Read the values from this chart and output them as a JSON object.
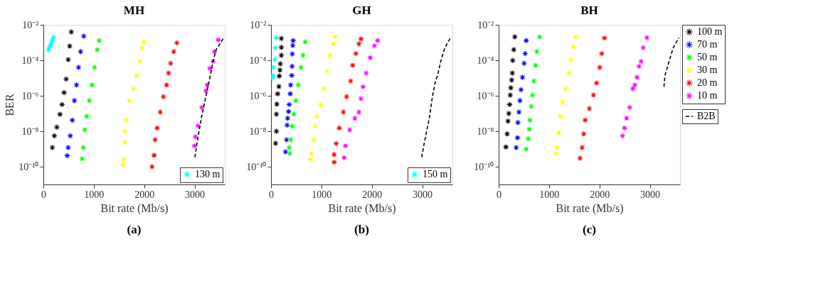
{
  "chart_data": [
    {
      "type": "scatter",
      "title": "MH",
      "xlabel": "Bit rate (Mb/s)",
      "ylabel": "BER",
      "xlim": [
        0,
        3600
      ],
      "ylim": [
        1e-11,
        0.01
      ],
      "xticks": [
        0,
        1000,
        2000,
        3000
      ],
      "yticks": [
        {
          "value": 0.01,
          "label": "10⁻²"
        },
        {
          "value": 0.0001,
          "label": "10⁻⁴"
        },
        {
          "value": 1e-06,
          "label": "10⁻⁶"
        },
        {
          "value": 1e-08,
          "label": "10⁻⁸"
        },
        {
          "value": 1e-10,
          "label": "10⁻¹⁰"
        }
      ],
      "log": "y",
      "grid": false,
      "legend": "bottom right",
      "marker": "cross",
      "annotations": [
        "(a)"
      ],
      "series": [
        {
          "name": "130 m",
          "color": "#00ffff",
          "x": [
            100,
            120,
            140,
            160,
            180,
            205
          ],
          "values": [
            0.0004,
            0.0005,
            0.0007,
            0.001,
            0.0014,
            0.002
          ]
        },
        {
          "color": "#000000",
          "x": [
            177,
            218,
            267,
            329,
            370,
            411,
            452,
            493,
            522,
            554
          ],
          "values": [
            1.2e-09,
            5.5e-09,
            1.7e-08,
            9e-08,
            3.2e-07,
            1.5e-06,
            8.7e-06,
            0.00011,
            0.00063,
            0.004
          ]
        },
        {
          "color": "#0000ff",
          "x": [
            472,
            493,
            534,
            575,
            616,
            657,
            698,
            739,
            801
          ],
          "values": [
            4.2e-10,
            1.2e-09,
            5.5e-09,
            4.2e-08,
            5.4e-07,
            4.1e-06,
            4e-05,
            0.00031,
            0.0023
          ]
        },
        {
          "color": "#00ff00",
          "x": [
            768,
            793,
            821,
            862,
            912,
            965,
            1014,
            1068,
            1109
          ],
          "values": [
            2.8e-10,
            1.2e-09,
            1.2e-08,
            7e-08,
            5.4e-07,
            4.1e-06,
            4e-05,
            0.0004,
            0.0013
          ]
        },
        {
          "color": "#ffff00",
          "x": [
            1581,
            1589,
            1614,
            1622,
            1643,
            1704,
            1786,
            1848,
            1910,
            1951,
            1992
          ],
          "values": [
            1.3e-10,
            2.6e-10,
            2.5e-09,
            1e-08,
            4.2e-08,
            5.4e-07,
            2.5e-06,
            1.4e-05,
            8.7e-05,
            0.00051,
            0.0011
          ]
        },
        {
          "color": "#ff0000",
          "x": [
            2156,
            2197,
            2218,
            2259,
            2320,
            2382,
            2444,
            2485,
            2526,
            2587,
            2649
          ],
          "values": [
            1e-10,
            4.4e-10,
            3.3e-09,
            1.5e-08,
            1.2e-07,
            8.9e-07,
            4.1e-06,
            1.9e-05,
            6.8e-05,
            0.00031,
            0.00095
          ]
        },
        {
          "color": "#ff00ff",
          "x": [
            2998,
            3018,
            3068,
            3142,
            3224,
            3250,
            3306,
            3368,
            3396,
            3470
          ],
          "values": [
            1.5e-09,
            4.9e-09,
            2e-08,
            2.2e-07,
            1.9e-06,
            4.1e-06,
            3.5e-05,
            8.7e-05,
            0.00031,
            0.0014
          ]
        },
        {
          "type": "line",
          "line_style": "dashed",
          "marker": "none",
          "color": "#000000",
          "x": [
            3006,
            3060,
            3142,
            3216,
            3306,
            3368,
            3429,
            3581
          ],
          "values": [
            3.4e-10,
            3.3e-09,
            7e-08,
            6.9e-07,
            1.1e-05,
            8.7e-05,
            0.0004,
            0.0019
          ]
        }
      ]
    },
    {
      "type": "scatter",
      "title": "GH",
      "xlabel": "Bit rate (Mb/s)",
      "xlim": [
        0,
        3600
      ],
      "ylim": [
        1e-11,
        0.01
      ],
      "xticks": [
        0,
        1000,
        2000,
        3000
      ],
      "yticks": [
        {
          "value": 0.01,
          "label": "10⁻²"
        },
        {
          "value": 0.0001,
          "label": "10⁻⁴"
        },
        {
          "value": 1e-06,
          "label": "10⁻⁶"
        },
        {
          "value": 1e-08,
          "label": "10⁻⁸"
        },
        {
          "value": 1e-10,
          "label": "10⁻¹⁰"
        }
      ],
      "log": "y",
      "grid": false,
      "legend": "bottom right",
      "marker": "cross",
      "annotations": [
        "(b)"
      ],
      "series": [
        {
          "name": "150 m",
          "color": "#00ffff",
          "x": [
            33,
            41,
            49,
            74,
            82,
            103
          ],
          "values": [
            1e-05,
            1.4e-05,
            4e-05,
            0.00011,
            0.00051,
            0.0018
          ]
        },
        {
          "color": "#000000",
          "x": [
            90,
            107,
            107,
            115,
            131,
            156,
            164,
            177,
            185,
            205,
            205,
            205
          ],
          "values": [
            2.1e-09,
            1e-08,
            9.1e-08,
            3.4e-07,
            1.3e-06,
            3.3e-06,
            1.3e-05,
            2.8e-05,
            6.3e-05,
            0.00019,
            0.00054,
            0.0017
          ]
        },
        {
          "color": "#0000ff",
          "x": [
            287,
            308,
            320,
            329,
            349,
            361,
            382,
            390,
            411,
            419,
            423,
            431,
            439
          ],
          "values": [
            6.9e-10,
            3.3e-09,
            2.2e-08,
            5.4e-08,
            1.3e-07,
            3.2e-07,
            1.3e-06,
            4.1e-06,
            1.4e-05,
            4.6e-05,
            0.00023,
            0.00069,
            0.0013
          ]
        },
        {
          "color": "#00ff00",
          "x": [
            370,
            361,
            394,
            419,
            452,
            493,
            542,
            595,
            636,
            678
          ],
          "values": [
            5.6e-10,
            1.2e-09,
            3.3e-09,
            1.9e-08,
            9.1e-08,
            5.4e-07,
            4.1e-06,
            4e-05,
            0.00019,
            0.0011
          ]
        },
        {
          "color": "#ffff00",
          "x": [
            780,
            801,
            842,
            883,
            911,
            985,
            1047,
            1109,
            1170,
            1232,
            1273
          ],
          "values": [
            2.6e-10,
            5.6e-10,
            3.3e-09,
            1.9e-08,
            7e-08,
            3.2e-07,
            2.5e-06,
            2.4e-05,
            0.00019,
            0.00085,
            0.0021
          ]
        },
        {
          "color": "#ff0000",
          "x": [
            1253,
            1253,
            1294,
            1355,
            1437,
            1499,
            1581,
            1622,
            1684,
            1745,
            1786
          ],
          "values": [
            1.8e-10,
            4.9e-10,
            2e-09,
            1.5e-08,
            1.2e-07,
            8.9e-07,
            6.8e-06,
            5.2e-05,
            0.00024,
            0.00085,
            0.0016
          ]
        },
        {
          "color": "#ff00ff",
          "x": [
            1450,
            1478,
            1561,
            1663,
            1745,
            1786,
            1827,
            1889,
            1971,
            2053,
            2115
          ],
          "values": [
            3.2e-10,
            1.5e-09,
            1.2e-08,
            5.4e-08,
            1.2e-07,
            6.9e-07,
            3.2e-06,
            1.9e-05,
            0.00014,
            0.00066,
            0.0013
          ]
        },
        {
          "type": "line",
          "line_style": "dashed",
          "marker": "none",
          "color": "#000000",
          "x": [
            2990,
            3039,
            3101,
            3142,
            3203,
            3265,
            3306,
            3368,
            3450,
            3573
          ],
          "values": [
            3.4e-10,
            2e-09,
            1.5e-08,
            5.4e-08,
            8.9e-07,
            6.8e-06,
            1.4e-05,
            8.7e-05,
            0.00051,
            0.0021
          ]
        }
      ]
    },
    {
      "type": "scatter",
      "title": "BH",
      "xlabel": "Bit rate (Mb/s)",
      "xlim": [
        0,
        3600
      ],
      "ylim": [
        1e-11,
        0.01
      ],
      "xticks": [
        0,
        1000,
        2000,
        3000
      ],
      "yticks": [
        {
          "value": 0.01,
          "label": "10⁻²"
        },
        {
          "value": 0.0001,
          "label": "10⁻⁴"
        },
        {
          "value": 1e-06,
          "label": "10⁻⁶"
        },
        {
          "value": 1e-08,
          "label": "10⁻⁸"
        },
        {
          "value": 1e-10,
          "label": "10⁻¹⁰"
        }
      ],
      "log": "y",
      "grid": false,
      "legend": "right",
      "marker": "cross",
      "annotations": [
        "(c)"
      ],
      "series": [
        {
          "name": "100 m",
          "color": "#000000",
          "x": [
            144,
            169,
            185,
            201,
            218,
            230,
            242,
            259,
            271,
            279,
            300,
            321
          ],
          "values": [
            1.3e-09,
            7.1e-09,
            3.7e-08,
            1e-07,
            3.2e-07,
            1.1e-06,
            2.8e-06,
            7.8e-06,
            1.9e-05,
            9.8e-05,
            0.0004,
            0.0021
          ]
        },
        {
          "name": "70 m",
          "color": "#0000ff",
          "x": [
            349,
            374,
            382,
            403,
            423,
            444,
            473,
            506,
            526,
            547
          ],
          "values": [
            1.2e-09,
            4.3e-09,
            3.1e-08,
            1.2e-07,
            5.4e-07,
            2.2e-06,
            1.1e-05,
            6.8e-05,
            0.00024,
            0.0013
          ]
        },
        {
          "name": "50 m",
          "color": "#00ff00",
          "x": [
            547,
            588,
            608,
            621,
            649,
            670,
            699,
            732,
            760,
            814
          ],
          "values": [
            1e-09,
            3.8e-09,
            1.3e-08,
            4.2e-08,
            2.5e-07,
            1.1e-06,
            6.8e-06,
            5.2e-05,
            0.00031,
            0.0021
          ]
        },
        {
          "name": "30 m",
          "color": "#ffff00",
          "x": [
            1134,
            1163,
            1196,
            1225,
            1266,
            1328,
            1389,
            1443,
            1484,
            1525
          ],
          "values": [
            5.6e-10,
            1.2e-09,
            8.1e-09,
            7e-08,
            4.2e-07,
            2.5e-06,
            1.9e-05,
            0.00011,
            0.00058,
            0.0021
          ]
        },
        {
          "name": "20 m",
          "color": "#ff0000",
          "x": [
            1615,
            1656,
            1689,
            1718,
            1800,
            1882,
            1944,
            2006,
            2047,
            2100
          ],
          "values": [
            3e-10,
            1.2e-09,
            7.1e-09,
            4.2e-08,
            1.9e-07,
            1.1e-06,
            5.2e-06,
            4e-05,
            0.00024,
            0.0018
          ]
        },
        {
          "name": "10 m",
          "color": "#ff00ff",
          "x": [
            2458,
            2499,
            2540,
            2602,
            2663,
            2704,
            2746,
            2787,
            2828,
            2869,
            2943
          ],
          "values": [
            5.5e-09,
            1.5e-08,
            5.4e-08,
            2.2e-07,
            2.5e-06,
            4.1e-06,
            1.1e-05,
            4.6e-05,
            8.7e-05,
            0.00051,
            0.0019
          ]
        },
        {
          "name": "B2B",
          "type": "line",
          "line_style": "dashed",
          "marker": "none",
          "color": "#000000",
          "x": [
            3280,
            3301,
            3383,
            3465,
            3576
          ],
          "values": [
            3.2e-06,
            1.4e-05,
            8.7e-05,
            0.00051,
            0.0019
          ]
        }
      ]
    }
  ]
}
